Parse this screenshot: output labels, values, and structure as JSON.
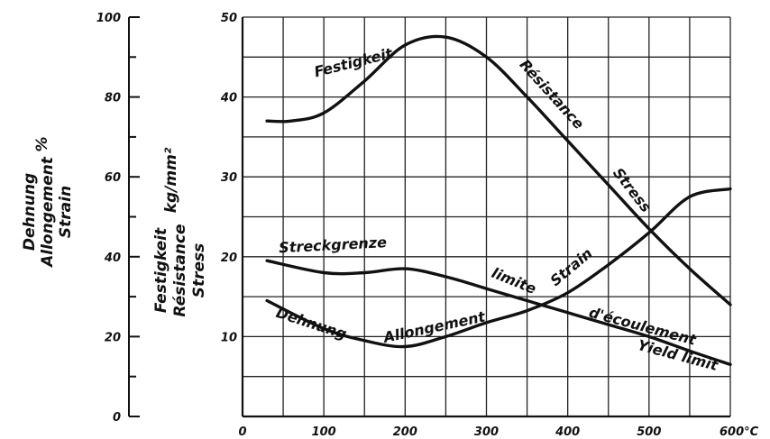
{
  "chart_data": {
    "type": "line",
    "x_axis": {
      "range": [
        0,
        600
      ],
      "ticks": [
        "0",
        "100",
        "200",
        "300",
        "400",
        "500",
        "600°C"
      ],
      "tick_values": [
        0,
        100,
        200,
        300,
        400,
        500,
        600
      ]
    },
    "left_axis": {
      "label_lines": [
        "Dehnung",
        "Allongement",
        "Strain"
      ],
      "unit": "%",
      "range": [
        0,
        100
      ],
      "ticks": [
        "0",
        "20",
        "40",
        "60",
        "80",
        "100"
      ],
      "tick_values": [
        0,
        20,
        40,
        60,
        80,
        100
      ]
    },
    "right_axis": {
      "label_lines": [
        "Festigkeit",
        "Résistance",
        "Stress"
      ],
      "unit": "kg/mm²",
      "range": [
        0,
        50
      ],
      "ticks": [
        "10",
        "20",
        "30",
        "40",
        "50"
      ],
      "tick_values": [
        10,
        20,
        30,
        40,
        50
      ]
    },
    "grid": true,
    "series": [
      {
        "axis": "stress",
        "x": [
          30,
          60,
          100,
          150,
          200,
          250,
          300,
          350,
          400,
          450,
          500,
          550,
          600
        ],
        "y": [
          37,
          37,
          38,
          42,
          46.5,
          47.5,
          45,
          40,
          34.5,
          29,
          23.5,
          18.5,
          14
        ],
        "labels": [
          {
            "text": "Festigkeit",
            "x": 90,
            "y": 42.5,
            "rotate": -14
          },
          {
            "text": "Résistance",
            "x": 340,
            "y": 44,
            "rotate": 48
          },
          {
            "text": "Stress",
            "x": 455,
            "y": 30.5,
            "rotate": 52
          }
        ]
      },
      {
        "axis": "stress",
        "x": [
          30,
          100,
          150,
          200,
          250,
          300,
          350,
          400,
          450,
          500,
          550,
          600
        ],
        "y": [
          19.5,
          18,
          18,
          18.5,
          17.5,
          16,
          14.5,
          13,
          11.5,
          10,
          8.2,
          6.5
        ],
        "labels": [
          {
            "text": "Streckgrenze",
            "x": 45,
            "y": 20.5,
            "rotate": -3
          },
          {
            "text": "limite",
            "x": 305,
            "y": 17.5,
            "rotate": 22
          },
          {
            "text": "d'écoulement",
            "x": 425,
            "y": 12.5,
            "rotate": 15
          },
          {
            "text": "Yield limit",
            "x": 485,
            "y": 8.4,
            "rotate": 15
          }
        ]
      },
      {
        "axis": "strain",
        "x": [
          30,
          100,
          150,
          200,
          250,
          300,
          350,
          400,
          450,
          500,
          550,
          600
        ],
        "y": [
          29,
          22,
          19,
          17.5,
          20,
          23.5,
          26.5,
          31,
          38,
          46,
          55,
          57
        ],
        "labels": [
          {
            "text": "Dehnung",
            "x": 40,
            "y": 25,
            "rotate": 18
          },
          {
            "text": "Allongement",
            "x": 175,
            "y": 18.5,
            "rotate": -12
          },
          {
            "text": "Strain",
            "x": 385,
            "y": 32.5,
            "rotate": -40
          }
        ]
      }
    ]
  }
}
